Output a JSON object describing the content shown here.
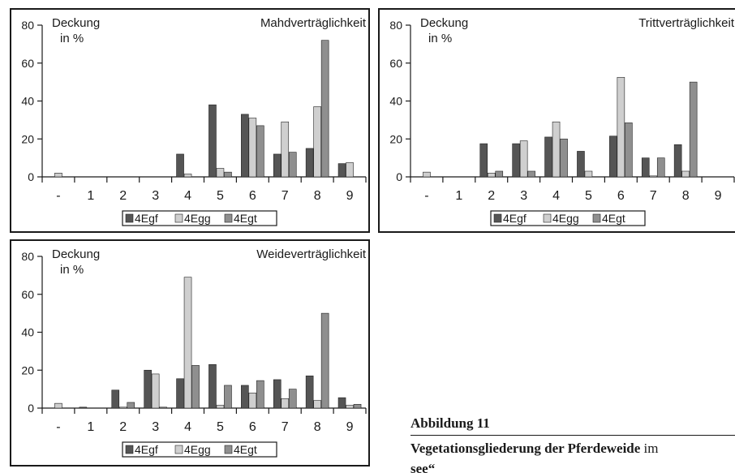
{
  "colors": {
    "4Egf": "#555555",
    "4Egg": "#cfcfcf",
    "4Egt": "#8f8f8f",
    "frame": "#1a1a1a"
  },
  "chart_data": [
    {
      "type": "bar",
      "title": "Mahdverträglichkeit",
      "ylabel": "Deckung in %",
      "ylabel_line1": "Deckung",
      "ylabel_line2": "in %",
      "ylim": [
        0,
        80
      ],
      "yticks": [
        0,
        20,
        40,
        60,
        80
      ],
      "categories": [
        "-",
        "1",
        "2",
        "3",
        "4",
        "5",
        "6",
        "7",
        "8",
        "9"
      ],
      "legend_position": "bottom",
      "series": [
        {
          "name": "4Egf",
          "values": [
            0,
            0,
            0,
            0,
            12,
            38,
            33,
            12,
            15,
            7
          ]
        },
        {
          "name": "4Egg",
          "values": [
            2,
            0,
            0,
            0,
            1.5,
            4.5,
            31,
            29,
            37,
            7.5
          ]
        },
        {
          "name": "4Egt",
          "values": [
            0,
            0,
            0,
            0,
            0,
            2.5,
            27,
            13,
            72,
            0
          ]
        }
      ]
    },
    {
      "type": "bar",
      "title": "Trittverträglichkeit",
      "ylabel": "Deckung in %",
      "ylabel_line1": "Deckung",
      "ylabel_line2": "in %",
      "ylim": [
        0,
        80
      ],
      "yticks": [
        0,
        20,
        40,
        60,
        80
      ],
      "categories": [
        "-",
        "1",
        "2",
        "3",
        "4",
        "5",
        "6",
        "7",
        "8",
        "9"
      ],
      "legend_position": "bottom",
      "series": [
        {
          "name": "4Egf",
          "values": [
            0,
            0,
            17.5,
            17.5,
            21,
            13.5,
            21.5,
            10,
            17,
            0
          ]
        },
        {
          "name": "4Egg",
          "values": [
            2.5,
            0,
            2,
            19,
            29,
            3,
            52.5,
            0.5,
            3,
            0
          ]
        },
        {
          "name": "4Egt",
          "values": [
            0,
            0,
            3,
            3,
            20,
            0,
            28.5,
            10,
            50,
            0
          ]
        }
      ]
    },
    {
      "type": "bar",
      "title": "Weideverträglichkeit",
      "ylabel": "Deckung in %",
      "ylabel_line1": "Deckung",
      "ylabel_line2": "in %",
      "ylim": [
        0,
        80
      ],
      "yticks": [
        0,
        20,
        40,
        60,
        80
      ],
      "categories": [
        "-",
        "1",
        "2",
        "3",
        "4",
        "5",
        "6",
        "7",
        "8",
        "9"
      ],
      "legend_position": "bottom",
      "series": [
        {
          "name": "4Egf",
          "values": [
            0,
            0.5,
            9.5,
            20,
            15.5,
            23,
            12,
            15,
            17,
            5.5
          ]
        },
        {
          "name": "4Egg",
          "values": [
            2.5,
            0,
            0.5,
            18,
            69,
            1.5,
            8,
            5,
            4,
            1.5
          ]
        },
        {
          "name": "4Egt",
          "values": [
            0,
            0,
            3,
            0.5,
            22.5,
            12,
            14.5,
            10,
            50,
            2
          ]
        }
      ]
    }
  ],
  "caption": {
    "title": "Abbildung 11",
    "text_bold": "Vegetationsgliederung der Pferdeweide",
    "text_rest": " im",
    "text_cut": "see“"
  }
}
